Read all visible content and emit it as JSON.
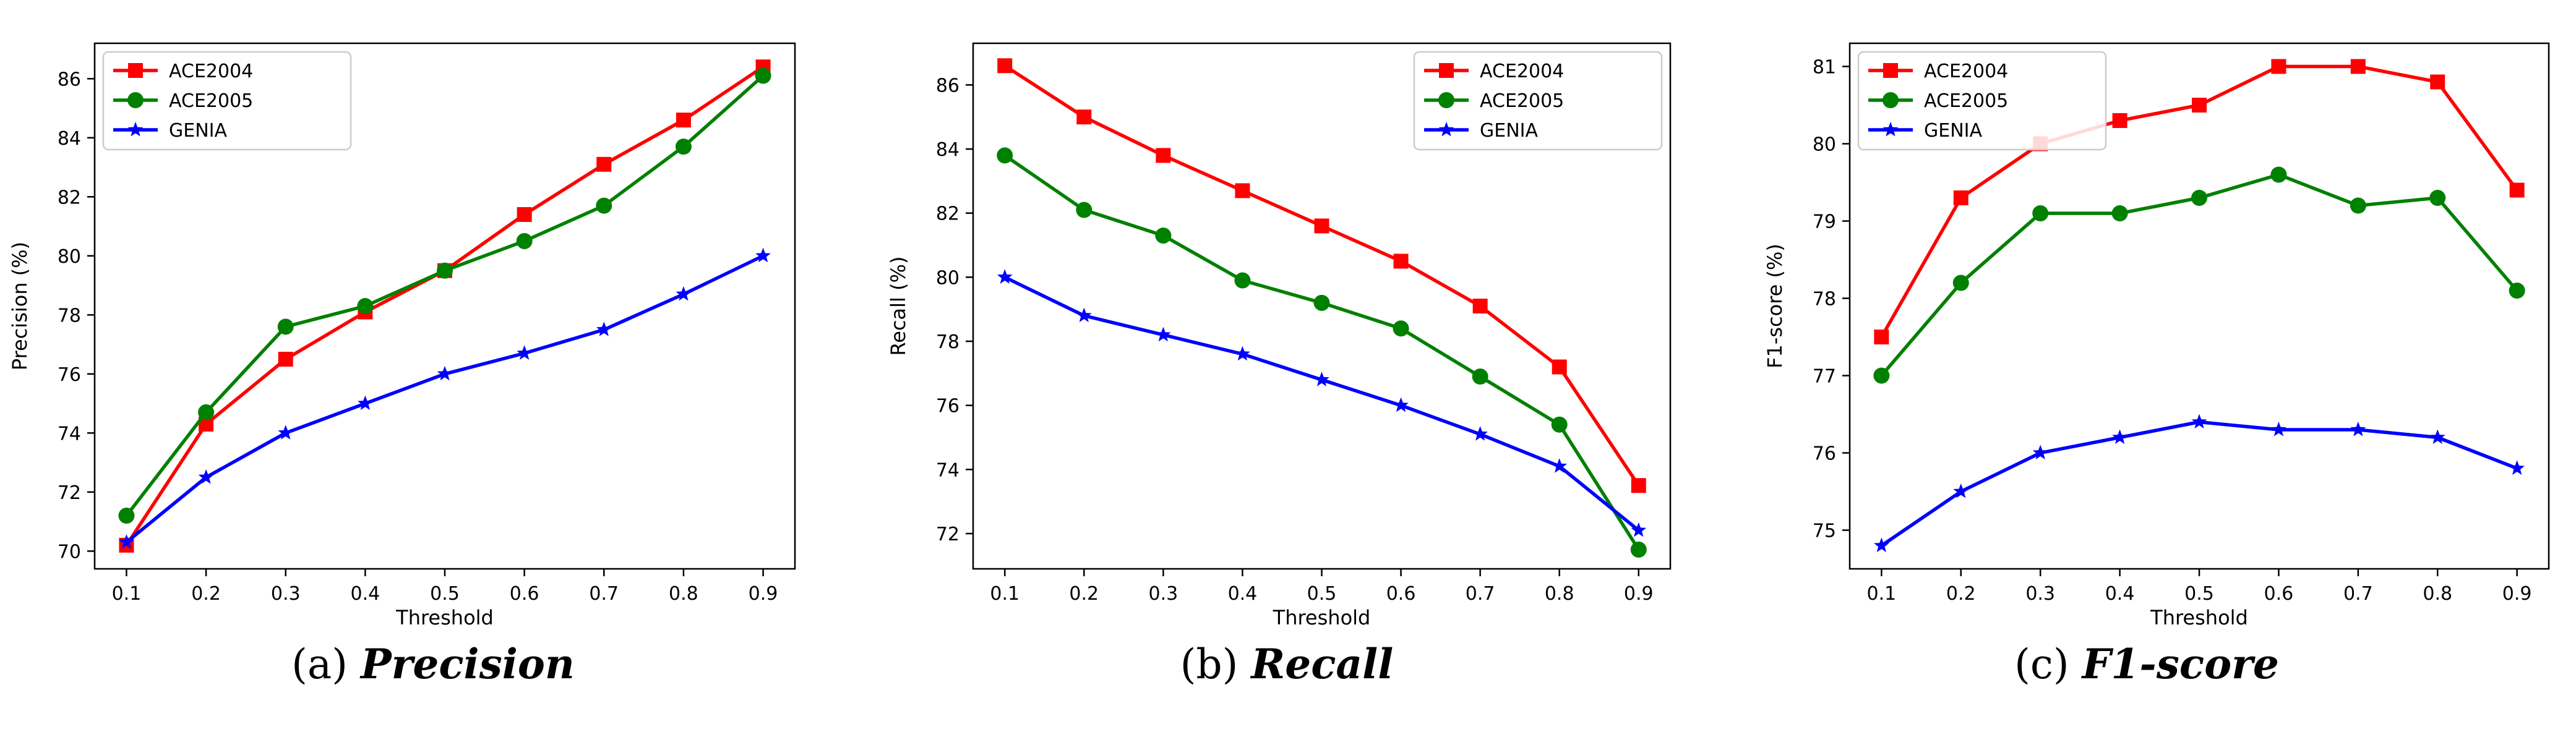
{
  "chart_data": [
    {
      "type": "line",
      "panel_label": "(a)",
      "caption": "Precision",
      "xlabel": "Threshold",
      "ylabel": "Precision (%)",
      "x": [
        0.1,
        0.2,
        0.3,
        0.4,
        0.5,
        0.6,
        0.7,
        0.8,
        0.9
      ],
      "xticks": [
        "0.1",
        "0.2",
        "0.3",
        "0.4",
        "0.5",
        "0.6",
        "0.7",
        "0.8",
        "0.9"
      ],
      "ylim": [
        69.4,
        87.2
      ],
      "yticks": [
        "70",
        "72",
        "74",
        "76",
        "78",
        "80",
        "82",
        "84",
        "86"
      ],
      "legend_position": "top-left",
      "series": [
        {
          "name": "ACE2004",
          "color": "#ff0000",
          "marker": "square",
          "values": [
            70.2,
            74.3,
            76.5,
            78.1,
            79.5,
            81.4,
            83.1,
            84.6,
            86.4
          ]
        },
        {
          "name": "ACE2005",
          "color": "#008000",
          "marker": "circle",
          "values": [
            71.2,
            74.7,
            77.6,
            78.3,
            79.5,
            80.5,
            81.7,
            83.7,
            86.1
          ]
        },
        {
          "name": "GENIA",
          "color": "#0000ff",
          "marker": "star",
          "values": [
            70.3,
            72.5,
            74.0,
            75.0,
            76.0,
            76.7,
            77.5,
            78.7,
            80.0
          ]
        }
      ]
    },
    {
      "type": "line",
      "panel_label": "(b)",
      "caption": "Recall",
      "xlabel": "Threshold",
      "ylabel": "Recall (%)",
      "x": [
        0.1,
        0.2,
        0.3,
        0.4,
        0.5,
        0.6,
        0.7,
        0.8,
        0.9
      ],
      "xticks": [
        "0.1",
        "0.2",
        "0.3",
        "0.4",
        "0.5",
        "0.6",
        "0.7",
        "0.8",
        "0.9"
      ],
      "ylim": [
        70.9,
        87.3
      ],
      "yticks": [
        "72",
        "74",
        "76",
        "78",
        "80",
        "82",
        "84",
        "86"
      ],
      "legend_position": "top-right",
      "series": [
        {
          "name": "ACE2004",
          "color": "#ff0000",
          "marker": "square",
          "values": [
            86.6,
            85.0,
            83.8,
            82.7,
            81.6,
            80.5,
            79.1,
            77.2,
            73.5
          ]
        },
        {
          "name": "ACE2005",
          "color": "#008000",
          "marker": "circle",
          "values": [
            83.8,
            82.1,
            81.3,
            79.9,
            79.2,
            78.4,
            76.9,
            75.4,
            71.5
          ]
        },
        {
          "name": "GENIA",
          "color": "#0000ff",
          "marker": "star",
          "values": [
            80.0,
            78.8,
            78.2,
            77.6,
            76.8,
            76.0,
            75.1,
            74.1,
            72.1
          ]
        }
      ]
    },
    {
      "type": "line",
      "panel_label": "(c)",
      "caption": "F1-score",
      "xlabel": "Threshold",
      "ylabel": "F1-score (%)",
      "x": [
        0.1,
        0.2,
        0.3,
        0.4,
        0.5,
        0.6,
        0.7,
        0.8,
        0.9
      ],
      "xticks": [
        "0.1",
        "0.2",
        "0.3",
        "0.4",
        "0.5",
        "0.6",
        "0.7",
        "0.8",
        "0.9"
      ],
      "ylim": [
        74.5,
        81.3
      ],
      "yticks": [
        "75",
        "76",
        "77",
        "78",
        "79",
        "80",
        "81"
      ],
      "legend_position": "top-left",
      "series": [
        {
          "name": "ACE2004",
          "color": "#ff0000",
          "marker": "square",
          "values": [
            77.5,
            79.3,
            80.0,
            80.3,
            80.5,
            81.0,
            81.0,
            80.8,
            79.4
          ]
        },
        {
          "name": "ACE2005",
          "color": "#008000",
          "marker": "circle",
          "values": [
            77.0,
            78.2,
            79.1,
            79.1,
            79.3,
            79.6,
            79.2,
            79.3,
            78.1
          ]
        },
        {
          "name": "GENIA",
          "color": "#0000ff",
          "marker": "star",
          "values": [
            74.8,
            75.5,
            76.0,
            76.2,
            76.4,
            76.3,
            76.3,
            76.2,
            75.8
          ]
        }
      ]
    }
  ]
}
